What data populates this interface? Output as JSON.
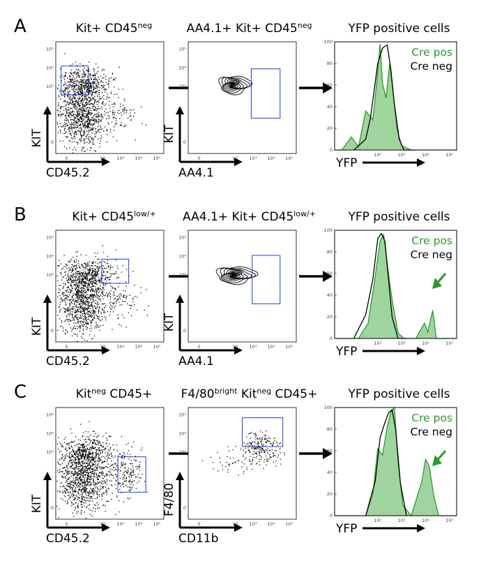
{
  "chart_data": {
    "type": "flow-cytometry-figure",
    "panels": [
      {
        "letter": "A",
        "plot1": {
          "type": "scatter",
          "title_parts": [
            "Kit+ CD45",
            "neg",
            ""
          ],
          "xlabel": "CD45.2",
          "ylabel": "KIT",
          "gate": [
            -0.3,
            1.2,
            2.55,
            4.1
          ],
          "cloud_seed": 11,
          "dist": "A"
        },
        "plot2": {
          "type": "contour",
          "title_parts": [
            "AA4.1+ Kit+ CD45",
            "neg",
            ""
          ],
          "xlabel": "AA4.1",
          "ylabel": "KIT",
          "gate": [
            2.9,
            4.5,
            1.3,
            3.95
          ],
          "contour_center": [
            1.85,
            3.1
          ],
          "contour_spread": [
            0.8,
            0.48
          ]
        },
        "plot3": {
          "type": "histogram",
          "title": "YFP positive cells",
          "xlabel": "YFP",
          "legend": [
            "Cre pos",
            "Cre neg"
          ],
          "arrow": false,
          "ymax": 100,
          "series": [
            {
              "name": "Cre pos",
              "color": "#2a9a2a",
              "x": [
                0.2,
                0.5,
                0.9,
                1.2,
                1.5,
                1.8,
                2.0,
                2.1,
                2.2,
                2.35,
                2.5,
                2.65,
                2.8,
                3.0,
                3.4,
                4.0,
                5.3
              ],
              "y": [
                0,
                0,
                12,
                3,
                36,
                28,
                72,
                98,
                62,
                48,
                80,
                52,
                20,
                4,
                0,
                0,
                0
              ]
            },
            {
              "name": "Cre neg",
              "color": "#000000",
              "x": [
                1.0,
                1.5,
                1.7,
                2.0,
                2.2,
                2.3,
                2.4,
                2.55,
                2.7,
                2.9,
                3.1,
                3.5
              ],
              "y": [
                0,
                10,
                30,
                80,
                94,
                96,
                97,
                75,
                42,
                10,
                0,
                0
              ]
            }
          ]
        }
      },
      {
        "letter": "B",
        "plot1": {
          "type": "scatter",
          "title_parts": [
            "Kit+ CD45",
            "low/+",
            ""
          ],
          "xlabel": "CD45.2",
          "ylabel": "KIT",
          "gate": [
            1.95,
            3.45,
            2.55,
            3.85
          ],
          "cloud_seed": 23,
          "dist": "B"
        },
        "plot2": {
          "type": "contour",
          "title_parts": [
            "AA4.1+ Kit+ CD45",
            "low/+",
            ""
          ],
          "xlabel": "AA4.1",
          "ylabel": "KIT",
          "gate": [
            2.95,
            4.5,
            1.45,
            4.05
          ],
          "contour_center": [
            1.9,
            3.0
          ],
          "contour_spread": [
            1.0,
            0.45
          ]
        },
        "plot3": {
          "type": "histogram",
          "title": "YFP positive cells",
          "xlabel": "YFP",
          "legend": [
            "Cre pos",
            "Cre neg"
          ],
          "arrow": true,
          "ymax": 100,
          "series": [
            {
              "name": "Cre pos",
              "color": "#2a9a2a",
              "x": [
                0.2,
                1.2,
                1.6,
                1.9,
                2.1,
                2.25,
                2.45,
                2.6,
                2.85,
                3.1,
                3.6,
                3.8,
                3.95,
                4.1,
                4.3,
                4.45,
                5.3
              ],
              "y": [
                0,
                0,
                14,
                58,
                90,
                96,
                60,
                36,
                5,
                0,
                0,
                8,
                14,
                6,
                26,
                0,
                0
              ]
            },
            {
              "name": "Cre neg",
              "color": "#000000",
              "x": [
                1.0,
                1.5,
                1.8,
                2.0,
                2.15,
                2.3,
                2.45,
                2.6,
                2.85,
                3.2
              ],
              "y": [
                0,
                22,
                55,
                92,
                97,
                90,
                55,
                20,
                0,
                0
              ]
            }
          ]
        }
      },
      {
        "letter": "C",
        "plot1": {
          "type": "scatter",
          "title_parts": [
            "Kit",
            "neg",
            " CD45+"
          ],
          "xlabel": "CD45.2",
          "ylabel": "KIT",
          "gate": [
            2.85,
            4.4,
            0.85,
            2.75
          ],
          "cloud_seed": 37,
          "dist": "C"
        },
        "plot2": {
          "type": "scatter",
          "title_parts": [
            "F4/80",
            "bright",
            " Kit",
            "neg",
            " CD45+"
          ],
          "xlabel": "CD11b",
          "ylabel": "F4/80",
          "gate": [
            2.4,
            4.65,
            3.3,
            4.85
          ],
          "cloud_seed": 51,
          "dist": "F4"
        },
        "plot3": {
          "type": "histogram",
          "title": "YFP positive cells",
          "xlabel": "YFP",
          "legend": [
            "Cre pos",
            "Cre neg"
          ],
          "arrow": true,
          "ymax": 100,
          "series": [
            {
              "name": "Cre pos",
              "color": "#2a9a2a",
              "x": [
                0.2,
                1.5,
                1.8,
                2.0,
                2.2,
                2.4,
                2.55,
                2.7,
                2.85,
                3.05,
                3.4,
                3.6,
                3.85,
                4.0,
                4.15,
                4.35,
                4.55,
                5.3
              ],
              "y": [
                0,
                0,
                20,
                62,
                56,
                82,
                96,
                100,
                50,
                10,
                0,
                14,
                32,
                52,
                46,
                18,
                0,
                0
              ]
            },
            {
              "name": "Cre neg",
              "color": "#000000",
              "x": [
                1.5,
                1.9,
                2.1,
                2.3,
                2.45,
                2.6,
                2.75,
                2.95,
                3.2
              ],
              "y": [
                0,
                32,
                72,
                86,
                95,
                98,
                80,
                30,
                0
              ]
            }
          ]
        }
      }
    ]
  }
}
